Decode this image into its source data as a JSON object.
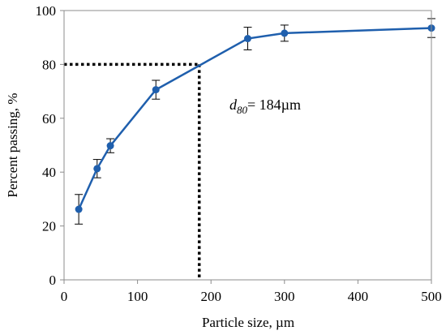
{
  "chart_data": {
    "type": "line",
    "title": "",
    "xlabel": "Particle size, µm",
    "ylabel": "Percent passing, %",
    "xlim": [
      0,
      500
    ],
    "ylim": [
      0,
      100
    ],
    "x_ticks": [
      0,
      100,
      200,
      300,
      400,
      500
    ],
    "y_ticks": [
      0,
      20,
      40,
      60,
      80,
      100
    ],
    "grid": false,
    "legend": "none",
    "series": [
      {
        "color": "#1f5fad",
        "points": [
          {
            "x": 20,
            "y": 26.2,
            "err": 5.5
          },
          {
            "x": 45,
            "y": 41.3,
            "err": 3.4
          },
          {
            "x": 63,
            "y": 49.8,
            "err": 2.6
          },
          {
            "x": 125,
            "y": 70.6,
            "err": 3.5
          },
          {
            "x": 250,
            "y": 89.6,
            "err": 4.2
          },
          {
            "x": 300,
            "y": 91.6,
            "err": 3.0
          },
          {
            "x": 500,
            "y": 93.5,
            "err": 3.5
          }
        ]
      }
    ],
    "reference": {
      "x": 184,
      "y": 80,
      "style": "dotted"
    },
    "annotation": {
      "symbol": "d",
      "subscript": "80",
      "text": "= 184µm"
    }
  }
}
